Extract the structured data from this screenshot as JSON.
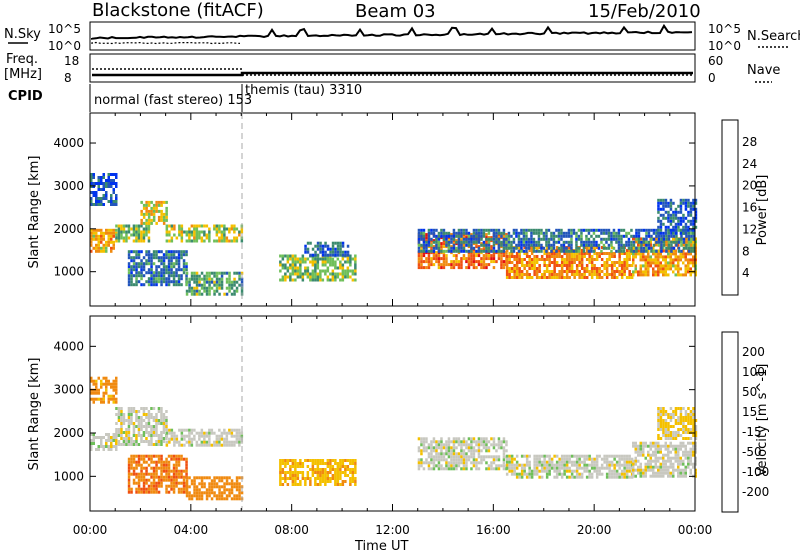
{
  "header": {
    "radar": "Blackstone (fitACF)",
    "beam": "Beam 03",
    "date": "15/Feb/2010"
  },
  "top_panels": {
    "nsky_label": "N.Sky",
    "nsky_ticks": [
      "10^5",
      "10^0"
    ],
    "nsearch_label": "N.Search",
    "nsearch_ticks": [
      "10^5",
      "10^0"
    ],
    "freq_label": "Freq.",
    "freq_unit": "[MHz]",
    "freq_ticks": [
      "18",
      "8"
    ],
    "nave_label": "Nave",
    "nave_ticks": [
      "60",
      "0"
    ],
    "cpid_label": "CPID",
    "cpid_modes": [
      {
        "name": "normal (fast stereo) 153",
        "start": "00:00",
        "end": "06:00"
      },
      {
        "name": "themis (tau) 3310",
        "start": "06:00",
        "end": "24:00"
      }
    ]
  },
  "colors": {
    "power": [
      "#0033ee",
      "#2255bb",
      "#3b8a6e",
      "#6fbf5a",
      "#f4c000",
      "#f08a10",
      "#f05010",
      "#e41010"
    ],
    "velocity": [
      "#e41010",
      "#f05010",
      "#f08a10",
      "#f4c000",
      "#c8c8c0",
      "#6fbf5a",
      "#3b8a6e",
      "#2255bb",
      "#0033ee"
    ]
  },
  "chart_data": [
    {
      "type": "heatmap",
      "name": "power",
      "xlabel": "",
      "ylabel": "Slant Range [km]",
      "y_ticks": [
        1000,
        2000,
        3000,
        4000
      ],
      "ylim": [
        200,
        4700
      ],
      "x_ticks": [
        "00:00",
        "04:00",
        "08:00",
        "12:00",
        "16:00",
        "20:00",
        "00:00"
      ],
      "xlim_hours": [
        0,
        24
      ],
      "colorbar": {
        "label": "Power [dB]",
        "ticks": [
          4,
          8,
          12,
          16,
          20,
          24,
          28
        ],
        "range": [
          0,
          32
        ]
      },
      "regions": [
        {
          "t0": 0.0,
          "t1": 1.0,
          "r0": 1500,
          "r1": 2000,
          "power": 20
        },
        {
          "t0": 0.0,
          "t1": 1.0,
          "r0": 2600,
          "r1": 3300,
          "power": 6
        },
        {
          "t0": 1.0,
          "t1": 2.3,
          "r0": 1700,
          "r1": 2100,
          "power": 14
        },
        {
          "t0": 2.0,
          "t1": 3.0,
          "r0": 2100,
          "r1": 2650,
          "power": 18
        },
        {
          "t0": 3.0,
          "t1": 6.0,
          "r0": 1750,
          "r1": 2100,
          "power": 16
        },
        {
          "t0": 1.5,
          "t1": 3.8,
          "r0": 700,
          "r1": 1500,
          "power": 8
        },
        {
          "t0": 3.8,
          "t1": 6.0,
          "r0": 500,
          "r1": 1000,
          "power": 12
        },
        {
          "t0": 7.5,
          "t1": 10.5,
          "r0": 800,
          "r1": 1400,
          "power": 14
        },
        {
          "t0": 8.5,
          "t1": 10.2,
          "r0": 1400,
          "r1": 1700,
          "power": 6
        },
        {
          "t0": 13.0,
          "t1": 16.5,
          "r0": 1100,
          "r1": 1900,
          "power": 24
        },
        {
          "t0": 16.5,
          "t1": 21.5,
          "r0": 900,
          "r1": 1600,
          "power": 22
        },
        {
          "t0": 21.5,
          "t1": 24.0,
          "r0": 900,
          "r1": 1800,
          "power": 20
        },
        {
          "t0": 13.0,
          "t1": 24.0,
          "r0": 1500,
          "r1": 2000,
          "power": 8
        },
        {
          "t0": 22.5,
          "t1": 24.0,
          "r0": 1900,
          "r1": 2700,
          "power": 6
        }
      ]
    },
    {
      "type": "heatmap",
      "name": "velocity",
      "xlabel": "Time UT",
      "ylabel": "Slant Range [km]",
      "y_ticks": [
        1000,
        2000,
        3000,
        4000
      ],
      "ylim": [
        200,
        4700
      ],
      "x_ticks": [
        "00:00",
        "04:00",
        "08:00",
        "12:00",
        "16:00",
        "20:00",
        "00:00"
      ],
      "xlim_hours": [
        0,
        24
      ],
      "colorbar": {
        "label": "Velocity [m s^-1]",
        "ticks": [
          200,
          100,
          50,
          15,
          -15,
          -50,
          -100,
          -200
        ],
        "range": [
          -250,
          250
        ]
      },
      "regions": [
        {
          "t0": 0.0,
          "t1": 1.0,
          "r0": 1600,
          "r1": 2000,
          "velocity": 0
        },
        {
          "t0": 0.0,
          "t1": 1.0,
          "r0": 2700,
          "r1": 3300,
          "velocity": -60
        },
        {
          "t0": 1.0,
          "t1": 3.0,
          "r0": 1700,
          "r1": 2600,
          "velocity": 0
        },
        {
          "t0": 3.0,
          "t1": 6.0,
          "r0": 1700,
          "r1": 2100,
          "velocity": 0
        },
        {
          "t0": 1.5,
          "t1": 3.8,
          "r0": 600,
          "r1": 1500,
          "velocity": -90
        },
        {
          "t0": 3.8,
          "t1": 6.0,
          "r0": 500,
          "r1": 1000,
          "velocity": -80
        },
        {
          "t0": 7.5,
          "t1": 10.5,
          "r0": 800,
          "r1": 1400,
          "velocity": -40
        },
        {
          "t0": 13.0,
          "t1": 16.5,
          "r0": 1200,
          "r1": 1900,
          "velocity": 0
        },
        {
          "t0": 16.5,
          "t1": 21.5,
          "r0": 1000,
          "r1": 1500,
          "velocity": 0
        },
        {
          "t0": 21.5,
          "t1": 24.0,
          "r0": 1000,
          "r1": 1800,
          "velocity": 0
        },
        {
          "t0": 22.5,
          "t1": 24.0,
          "r0": 1900,
          "r1": 2600,
          "velocity": -20
        }
      ]
    }
  ]
}
